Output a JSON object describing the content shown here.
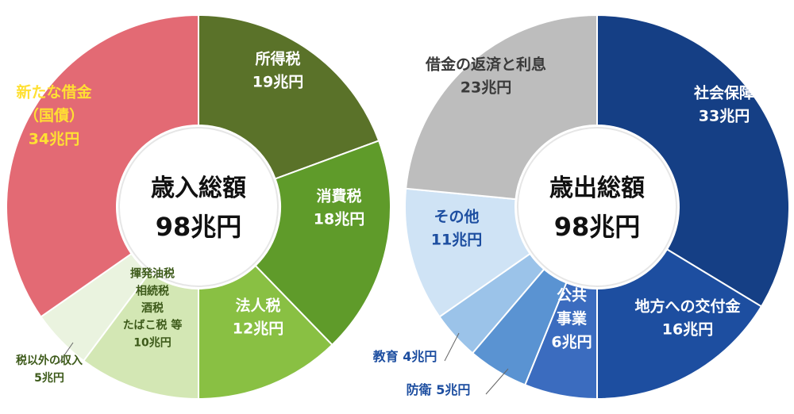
{
  "chart_data": [
    {
      "type": "pie",
      "title": "歳入総額",
      "total": "98兆円",
      "unit": "兆円",
      "slices": [
        {
          "name": "所得税",
          "value": 19,
          "label_value": "19兆円",
          "color": "#5a7229",
          "text_color": "#ffffff"
        },
        {
          "name": "消費税",
          "value": 18,
          "label_value": "18兆円",
          "color": "#5f9b2a",
          "text_color": "#ffffff"
        },
        {
          "name": "法人税",
          "value": 12,
          "label_value": "12兆円",
          "color": "#89c043",
          "text_color": "#ffffff"
        },
        {
          "name": "揮発油税\n相続税\n酒税\nたばこ税 等",
          "value": 10,
          "label_value": "10兆円",
          "color": "#d3e7b4",
          "text_color": "#3d5a1a"
        },
        {
          "name": "税以外の収入",
          "value": 5,
          "label_value": "5兆円",
          "color": "#eaf3df",
          "text_color": "#3d5a1a"
        },
        {
          "name": "新たな借金\n（国債）",
          "value": 34,
          "label_value": "34兆円",
          "color": "#e36a74",
          "text_color": "#ffe033"
        }
      ]
    },
    {
      "type": "pie",
      "title": "歳出総額",
      "total": "98兆円",
      "unit": "兆円",
      "slices": [
        {
          "name": "社会保障",
          "value": 33,
          "label_value": "33兆円",
          "color": "#153f85",
          "text_color": "#ffffff"
        },
        {
          "name": "地方への交付金",
          "value": 16,
          "label_value": "16兆円",
          "color": "#1d4ea0",
          "text_color": "#ffffff"
        },
        {
          "name": "公共\n事業",
          "value": 6,
          "label_value": "6兆円",
          "color": "#3b6cbf",
          "text_color": "#ffffff"
        },
        {
          "name": "防衛",
          "value": 5,
          "label_value": "5兆円",
          "color": "#5a93d2",
          "text_color": "#1d4ea0"
        },
        {
          "name": "教育",
          "value": 4,
          "label_value": "4兆円",
          "color": "#9bc3e9",
          "text_color": "#1d4ea0"
        },
        {
          "name": "その他",
          "value": 11,
          "label_value": "11兆円",
          "color": "#cfe3f5",
          "text_color": "#1d4ea0"
        },
        {
          "name": "借金の返済と利息",
          "value": 23,
          "label_value": "23兆円",
          "color": "#bdbdbd",
          "text_color": "#3a3a3a"
        }
      ]
    }
  ]
}
